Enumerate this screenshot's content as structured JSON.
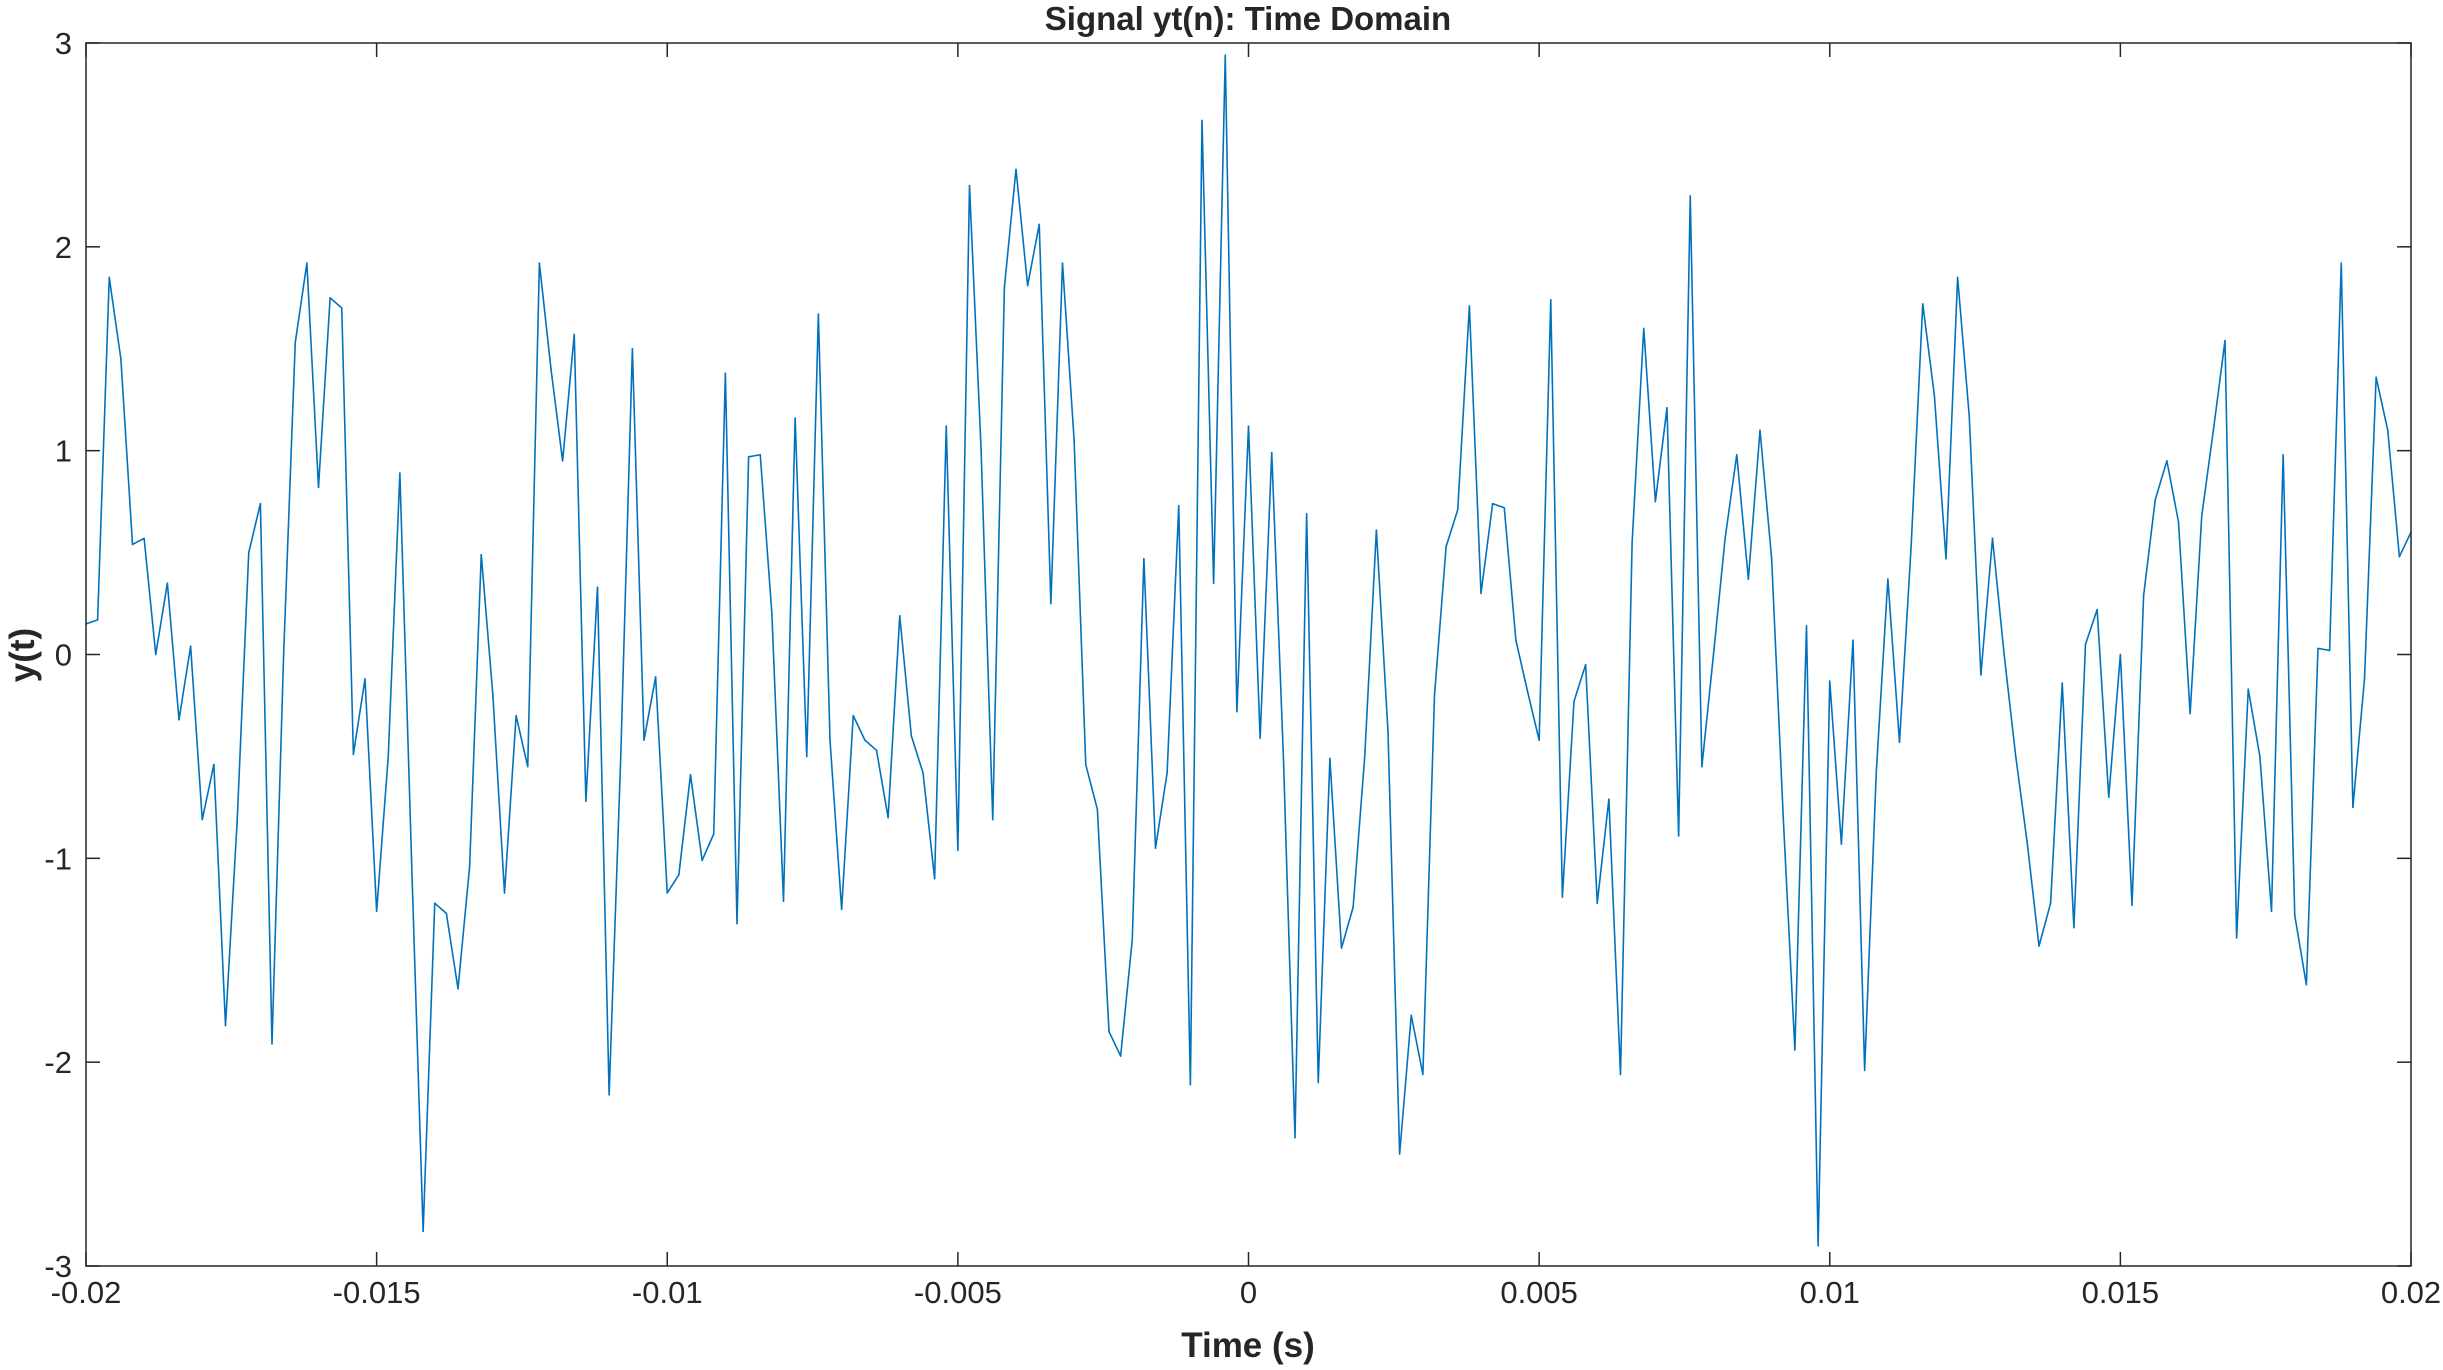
{
  "chart_data": {
    "type": "line",
    "title": "Signal yt(n): Time Domain",
    "xlabel": "Time (s)",
    "ylabel": "y(t)",
    "xlim": [
      -0.02,
      0.02
    ],
    "ylim": [
      -3,
      3
    ],
    "xticks": [
      -0.02,
      -0.015,
      -0.01,
      -0.005,
      0,
      0.005,
      0.01,
      0.015,
      0.02
    ],
    "xtick_labels": [
      "-0.02",
      "-0.015",
      "-0.01",
      "-0.005",
      "0",
      "0.005",
      "0.01",
      "0.015",
      "0.02"
    ],
    "yticks": [
      3,
      2,
      1,
      0,
      -1,
      -2,
      -3
    ],
    "ytick_labels": [
      "3",
      "2",
      "1",
      "0",
      "-1",
      "-2",
      "-3"
    ],
    "grid": false,
    "box": true,
    "series": [
      {
        "color": "#0072BD",
        "x_start": -0.02,
        "x_step": 0.0002,
        "values": [
          0.15,
          0.17,
          1.85,
          1.45,
          0.54,
          0.57,
          0.0,
          0.35,
          -0.32,
          0.04,
          -0.81,
          -0.54,
          -1.82,
          -0.82,
          0.5,
          0.74,
          -1.91,
          0.0,
          1.53,
          1.92,
          0.82,
          1.75,
          1.7,
          -0.49,
          -0.12,
          -1.26,
          -0.5,
          0.89,
          -1.0,
          -2.83,
          -1.22,
          -1.27,
          -1.64,
          -1.04,
          0.49,
          -0.2,
          -1.17,
          -0.3,
          -0.55,
          1.92,
          1.4,
          0.95,
          1.57,
          -0.72,
          0.33,
          -2.16,
          -0.5,
          1.5,
          -0.42,
          -0.11,
          -1.17,
          -1.08,
          -0.59,
          -1.01,
          -0.88,
          1.38,
          -1.32,
          0.97,
          0.98,
          0.2,
          -1.21,
          1.16,
          -0.5,
          1.67,
          -0.42,
          -1.25,
          -0.3,
          -0.42,
          -0.47,
          -0.8,
          0.19,
          -0.4,
          -0.58,
          -1.1,
          1.12,
          -0.96,
          2.3,
          1.0,
          -0.81,
          1.8,
          2.38,
          1.81,
          2.11,
          0.25,
          1.92,
          1.05,
          -0.54,
          -0.76,
          -1.85,
          -1.97,
          -1.4,
          0.47,
          -0.95,
          -0.58,
          0.73,
          -2.11,
          2.62,
          0.35,
          2.94,
          -0.28,
          1.12,
          -0.41,
          0.99,
          -0.5,
          -2.37,
          0.69,
          -2.1,
          -0.51,
          -1.44,
          -1.24,
          -0.5,
          0.61,
          -0.38,
          -2.45,
          -1.77,
          -2.06,
          -0.2,
          0.53,
          0.71,
          1.71,
          0.3,
          0.74,
          0.72,
          0.07,
          -0.18,
          -0.42,
          1.74,
          -1.19,
          -0.23,
          -0.05,
          -1.22,
          -0.71,
          -2.06,
          0.55,
          1.6,
          0.75,
          1.21,
          -0.89,
          2.25,
          -0.55,
          0.0,
          0.57,
          0.98,
          0.37,
          1.1,
          0.47,
          -0.8,
          -1.94,
          0.14,
          -2.9,
          -0.13,
          -0.93,
          0.07,
          -2.04,
          -0.58,
          0.37,
          -0.43,
          0.53,
          1.72,
          1.27,
          0.47,
          1.85,
          1.17,
          -0.1,
          0.57,
          0.0,
          -0.5,
          -0.93,
          -1.43,
          -1.22,
          -0.14,
          -1.34,
          0.05,
          0.22,
          -0.7,
          0.0,
          -1.23,
          0.29,
          0.76,
          0.95,
          0.65,
          -0.29,
          0.68,
          1.1,
          1.54,
          -1.39,
          -0.17,
          -0.5,
          -1.26,
          0.98,
          -1.28,
          -1.62,
          0.03,
          0.02,
          1.92,
          -0.75,
          -0.12,
          1.36,
          1.1,
          0.48,
          0.6
        ]
      }
    ]
  }
}
